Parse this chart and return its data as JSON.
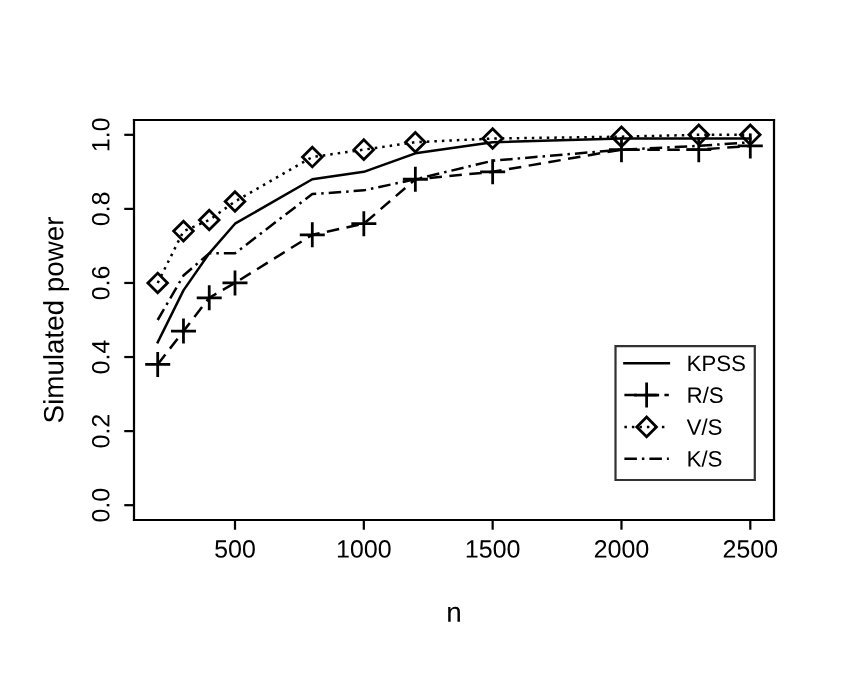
{
  "chart_data": {
    "type": "line",
    "xlabel": "n",
    "ylabel": "Simulated power",
    "x": [
      200,
      300,
      400,
      500,
      800,
      1000,
      1200,
      1500,
      2000,
      2300,
      2500
    ],
    "series": [
      {
        "name": "KPSS",
        "color": "#000000",
        "line_style": "solid",
        "marker": "none",
        "values": [
          0.44,
          0.58,
          0.68,
          0.76,
          0.88,
          0.9,
          0.95,
          0.98,
          0.99,
          0.99,
          0.99
        ]
      },
      {
        "name": "R/S",
        "color": "#000000",
        "line_style": "dashed",
        "marker": "cross",
        "values": [
          0.38,
          0.47,
          0.56,
          0.6,
          0.73,
          0.76,
          0.88,
          0.9,
          0.96,
          0.96,
          0.97
        ]
      },
      {
        "name": "V/S",
        "color": "#000000",
        "line_style": "dotted",
        "marker": "diamond",
        "values": [
          0.6,
          0.74,
          0.77,
          0.82,
          0.94,
          0.96,
          0.98,
          0.99,
          0.995,
          1.0,
          1.0
        ]
      },
      {
        "name": "K/S",
        "color": "#000000",
        "line_style": "dashdot",
        "marker": "none",
        "values": [
          0.5,
          0.62,
          0.68,
          0.68,
          0.84,
          0.85,
          0.88,
          0.93,
          0.96,
          0.97,
          0.98
        ]
      }
    ],
    "xlim": [
      108,
      2592
    ],
    "ylim": [
      -0.04,
      1.04
    ],
    "xticks": [
      500,
      1000,
      1500,
      2000,
      2500
    ],
    "yticks": [
      {
        "value": 0,
        "label": "0.0"
      },
      {
        "value": 0.2,
        "label": "0.2"
      },
      {
        "value": 0.4,
        "label": "0.4"
      },
      {
        "value": 0.6,
        "label": "0.6"
      },
      {
        "value": 0.8,
        "label": "0.8"
      },
      {
        "value": 1,
        "label": "1.0"
      }
    ],
    "grid": false,
    "legend": "bottom right"
  }
}
